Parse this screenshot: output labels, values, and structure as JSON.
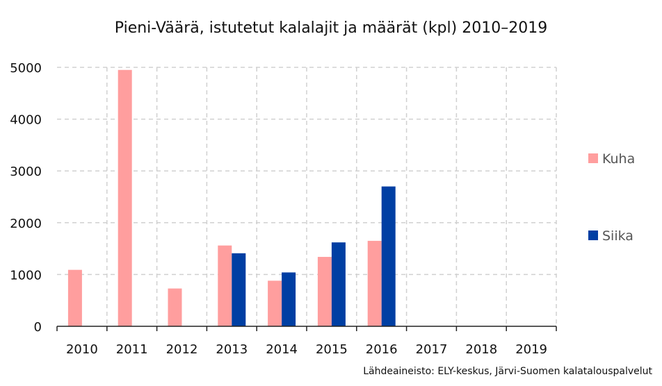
{
  "chart_data": {
    "type": "bar",
    "title": "Pieni-Väärä, istutetut kalalajit ja määrät (kpl) 2010–2019",
    "xlabel": "",
    "ylabel": "",
    "categories": [
      "2010",
      "2011",
      "2012",
      "2013",
      "2014",
      "2015",
      "2016",
      "2017",
      "2018",
      "2019"
    ],
    "series": [
      {
        "name": "Kuha",
        "color": "#ff9e9e",
        "values": [
          1090,
          4950,
          730,
          1560,
          880,
          1340,
          1650,
          0,
          0,
          0
        ]
      },
      {
        "name": "Siika",
        "color": "#003fa3",
        "values": [
          0,
          0,
          0,
          1410,
          1040,
          1620,
          2700,
          0,
          0,
          0
        ]
      }
    ],
    "ylim": [
      0,
      5000
    ],
    "yticks": [
      "0",
      "1000",
      "2000",
      "3000",
      "4000",
      "5000"
    ],
    "grid": true,
    "legend_position": "right"
  },
  "source_note": "Lähdeaineisto: ELY-keskus, Järvi-Suomen kalatalouspalvelut"
}
